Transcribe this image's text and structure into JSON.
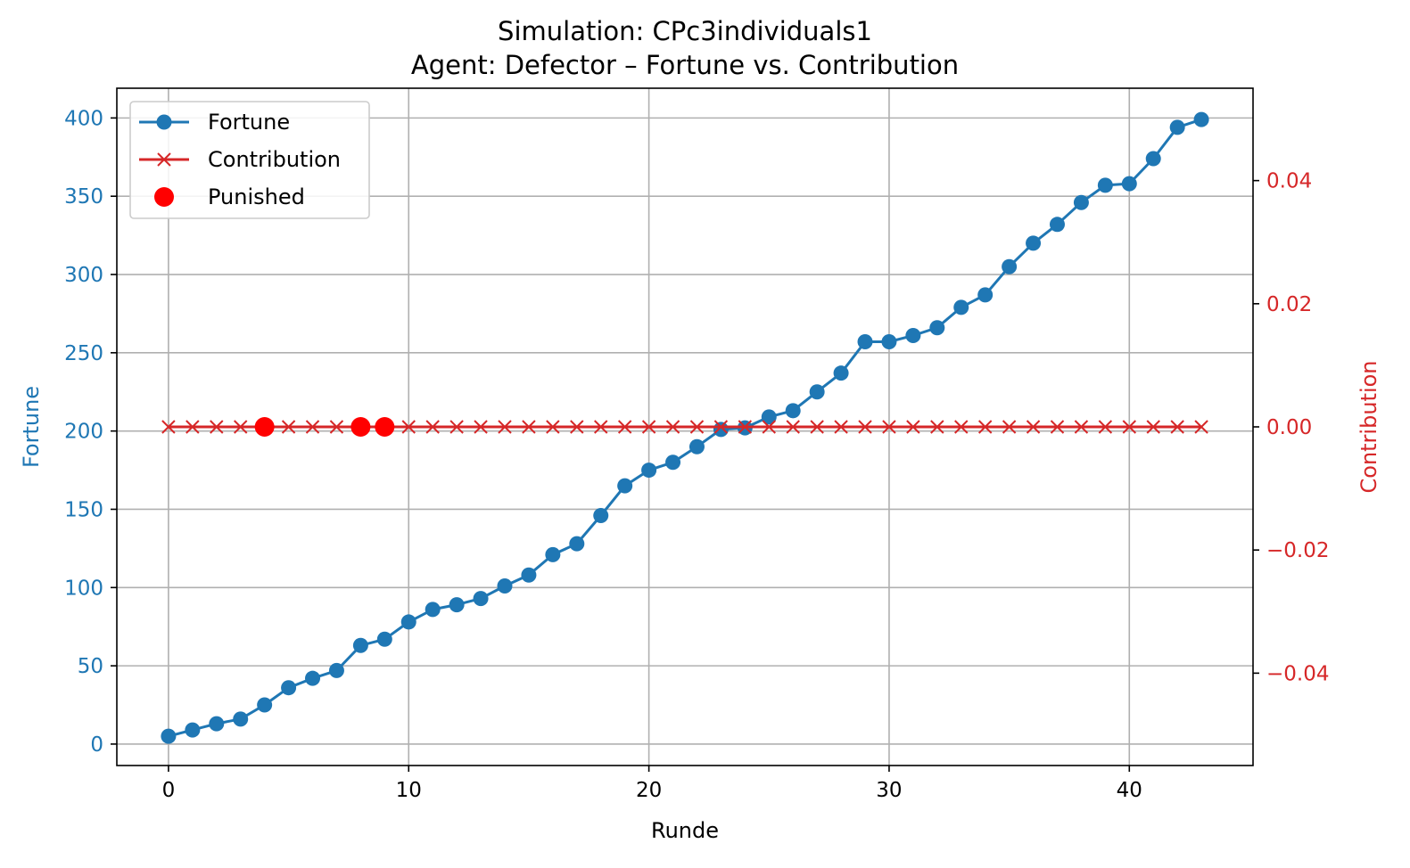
{
  "chart_data": {
    "type": "line",
    "title_line1": "Simulation: CPc3individuals1",
    "title_line2": "Agent: Defector – Fortune vs. Contribution",
    "xlabel": "Runde",
    "ylabel_left": "Fortune",
    "ylabel_right": "Contribution",
    "xlim": [
      -2.15,
      45.15
    ],
    "ylim_left": [
      -13.7,
      419.0
    ],
    "ylim_right": [
      -0.055,
      0.055
    ],
    "x_ticks": [
      0,
      10,
      20,
      30,
      40
    ],
    "x_tick_labels": [
      "0",
      "10",
      "20",
      "30",
      "40"
    ],
    "y_left_ticks": [
      0,
      50,
      100,
      150,
      200,
      250,
      300,
      350,
      400
    ],
    "y_left_tick_labels": [
      "0",
      "50",
      "100",
      "150",
      "200",
      "250",
      "300",
      "350",
      "400"
    ],
    "y_right_ticks": [
      -0.04,
      -0.02,
      0.0,
      0.02,
      0.04
    ],
    "y_right_tick_labels": [
      "−0.04",
      "−0.02",
      "0.00",
      "0.02",
      "0.04"
    ],
    "grid": true,
    "legend_position": "top-left",
    "series": [
      {
        "name": "Fortune",
        "axis": "left",
        "marker": "circle",
        "color": "#1f77b4",
        "x": [
          0,
          1,
          2,
          3,
          4,
          5,
          6,
          7,
          8,
          9,
          10,
          11,
          12,
          13,
          14,
          15,
          16,
          17,
          18,
          19,
          20,
          21,
          22,
          23,
          24,
          25,
          26,
          27,
          28,
          29,
          30,
          31,
          32,
          33,
          34,
          35,
          36,
          37,
          38,
          39,
          40,
          41,
          42,
          43
        ],
        "values": [
          5,
          9,
          13,
          16,
          25,
          36,
          42,
          47,
          63,
          67,
          78,
          86,
          89,
          93,
          101,
          108,
          121,
          128,
          146,
          165,
          175,
          180,
          190,
          201,
          202,
          209,
          213,
          225,
          237,
          257,
          257,
          261,
          266,
          279,
          287,
          305,
          320,
          332,
          346,
          357,
          358,
          374,
          394,
          399
        ]
      },
      {
        "name": "Contribution",
        "axis": "right",
        "marker": "x",
        "color": "#d62728",
        "x": [
          0,
          1,
          2,
          3,
          4,
          5,
          6,
          7,
          8,
          9,
          10,
          11,
          12,
          13,
          14,
          15,
          16,
          17,
          18,
          19,
          20,
          21,
          22,
          23,
          24,
          25,
          26,
          27,
          28,
          29,
          30,
          31,
          32,
          33,
          34,
          35,
          36,
          37,
          38,
          39,
          40,
          41,
          42,
          43
        ],
        "values": [
          0,
          0,
          0,
          0,
          0,
          0,
          0,
          0,
          0,
          0,
          0,
          0,
          0,
          0,
          0,
          0,
          0,
          0,
          0,
          0,
          0,
          0,
          0,
          0,
          0,
          0,
          0,
          0,
          0,
          0,
          0,
          0,
          0,
          0,
          0,
          0,
          0,
          0,
          0,
          0,
          0,
          0,
          0,
          0
        ]
      },
      {
        "name": "Punished",
        "axis": "right",
        "marker": "dot",
        "color": "#ff0000",
        "x": [
          4,
          8,
          9
        ],
        "values": [
          0,
          0,
          0
        ]
      }
    ]
  },
  "colors": {
    "left_axis": "#1f77b4",
    "right_axis": "#d62728",
    "punished": "#ff0000"
  }
}
